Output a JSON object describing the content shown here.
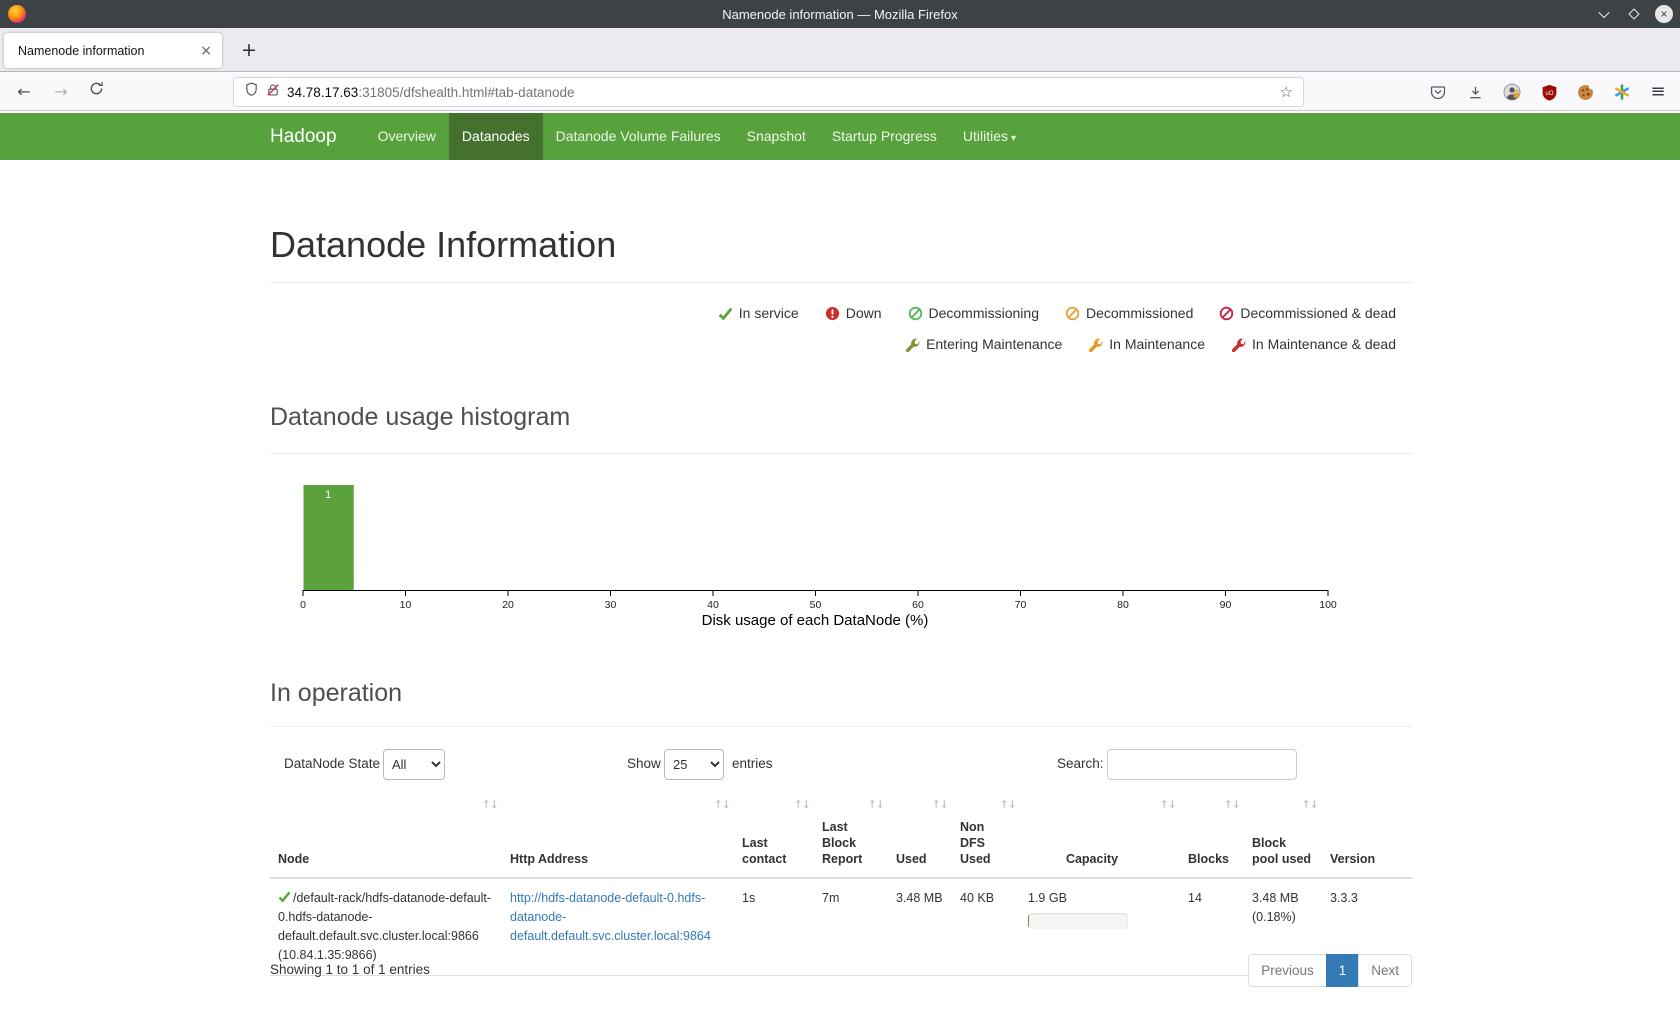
{
  "window": {
    "title": "Namenode information — Mozilla Firefox"
  },
  "browser": {
    "tab_title": "Namenode information",
    "url": {
      "host": "34.78.17.63",
      "rest": ":31805/dfshealth.html#tab-datanode"
    }
  },
  "icons": {
    "new_tab": "+",
    "close_tab": "×",
    "back": "←",
    "forward": "→",
    "star": "☆",
    "caret": "▾",
    "sort": "↑↓",
    "menu_lines": "≡"
  },
  "colors": {
    "navbar": "#57a23c",
    "navbar_active": "#44722e",
    "link": "#337ab7",
    "bar": "#5ba23d",
    "pagination_active": "#337ab7"
  },
  "navbar": {
    "brand": "Hadoop",
    "items": [
      {
        "label": "Overview",
        "active": false
      },
      {
        "label": "Datanodes",
        "active": true
      },
      {
        "label": "Datanode Volume Failures",
        "active": false
      },
      {
        "label": "Snapshot",
        "active": false
      },
      {
        "label": "Startup Progress",
        "active": false
      },
      {
        "label": "Utilities",
        "active": false,
        "has_caret": true
      }
    ]
  },
  "page": {
    "title": "Datanode Information",
    "legend_row1": [
      {
        "icon": "check-icon",
        "label": "In service",
        "color": "#5fa33e"
      },
      {
        "icon": "exclamation-circle-icon",
        "label": "Down",
        "color": "#c9302c"
      },
      {
        "icon": "ban-circle-icon",
        "label": "Decommissioning",
        "color": "#5cb85c"
      },
      {
        "icon": "ban-circle-icon",
        "label": "Decommissioned",
        "color": "#e9a33d"
      },
      {
        "icon": "ban-circle-icon",
        "label": "Decommissioned & dead",
        "color": "#c7254e"
      }
    ],
    "legend_row2": [
      {
        "icon": "wrench-icon",
        "label": "Entering Maintenance",
        "color": "#8a9135"
      },
      {
        "icon": "wrench-icon",
        "label": "In Maintenance",
        "color": "#ec971f"
      },
      {
        "icon": "wrench-icon",
        "label": "In Maintenance & dead",
        "color": "#c9302c"
      }
    ],
    "in_operation": {
      "heading": "In operation",
      "state_label": "DataNode State",
      "state_value": "All",
      "show_label": "Show",
      "show_value": "25",
      "entries_label": "entries",
      "search_label": "Search:",
      "search_value": "",
      "columns": [
        "Node",
        "Http Address",
        "Last contact",
        "Last Block Report",
        "Used",
        "Non DFS Used",
        "Capacity",
        "Blocks",
        "Block pool used",
        "Version"
      ],
      "row": {
        "node": "/default-rack/hdfs-datanode-default-0.hdfs-datanode-default.default.svc.cluster.local:9866 (10.84.1.35:9866)",
        "http_address": "http://hdfs-datanode-default-0.hdfs-datanode-default.default.svc.cluster.local:9864",
        "last_contact": "1s",
        "last_block_report": "7m",
        "used": "3.48 MB",
        "non_dfs_used": "40 KB",
        "capacity": "1.9 GB",
        "capacity_used_pct": 0.18,
        "blocks": "14",
        "block_pool_used": "3.48 MB (0.18%)",
        "version": "3.3.3"
      },
      "info": "Showing 1 to 1 of 1 entries",
      "pagination": {
        "previous": "Previous",
        "page": "1",
        "next": "Next"
      }
    }
  },
  "chart_data": {
    "type": "bar",
    "title": "Datanode usage histogram",
    "xlabel": "Disk usage of each DataNode (%)",
    "x": [
      0,
      10,
      20,
      30,
      40,
      50,
      60,
      70,
      80,
      90,
      100
    ],
    "xlim": [
      0,
      100
    ],
    "bucket_width_pct": 5,
    "bars": [
      {
        "x0": 0,
        "x1": 5,
        "count": 1
      }
    ],
    "bar_color": "#5ba23d",
    "grid": false,
    "legend_position": "none"
  }
}
